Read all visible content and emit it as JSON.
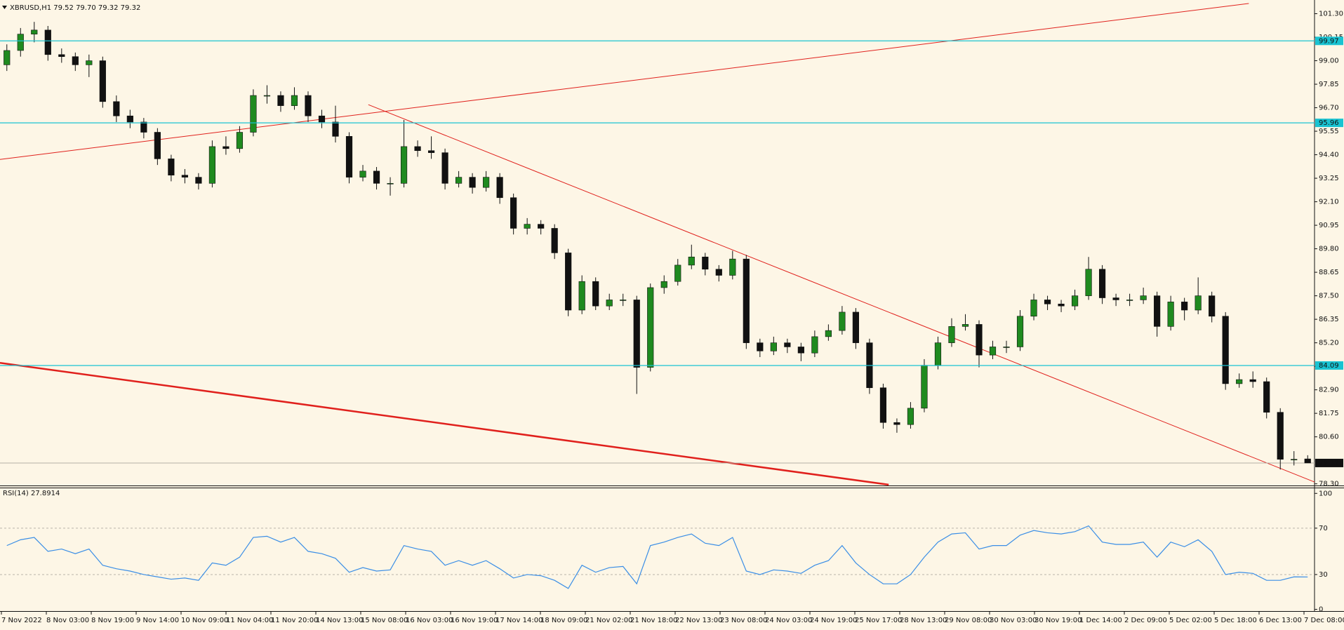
{
  "chart_data": {
    "type": "candlestick",
    "title": "XBRUSD,H1  79.52 79.70 79.32 79.32",
    "up_color": "#1f8a1f",
    "down_color": "#111111",
    "ylim": [
      78.22,
      101.97
    ],
    "yticks": [
      {
        "value": 101.3,
        "label": "101.30"
      },
      {
        "value": 100.15,
        "label": "100.15"
      },
      {
        "value": 99.0,
        "label": "99.00"
      },
      {
        "value": 97.85,
        "label": "97.85"
      },
      {
        "value": 96.7,
        "label": "96.70"
      },
      {
        "value": 95.55,
        "label": "95.55"
      },
      {
        "value": 94.4,
        "label": "94.40"
      },
      {
        "value": 93.25,
        "label": "93.25"
      },
      {
        "value": 92.1,
        "label": "92.10"
      },
      {
        "value": 90.95,
        "label": "90.95"
      },
      {
        "value": 89.8,
        "label": "89.80"
      },
      {
        "value": 88.65,
        "label": "88.65"
      },
      {
        "value": 87.5,
        "label": "87.50"
      },
      {
        "value": 86.35,
        "label": "86.35"
      },
      {
        "value": 85.2,
        "label": "85.20"
      },
      {
        "value": 84.05,
        "label": "84.05"
      },
      {
        "value": 82.9,
        "label": "82.90"
      },
      {
        "value": 81.75,
        "label": "81.75"
      },
      {
        "value": 80.6,
        "label": "80.60"
      },
      {
        "value": 78.3,
        "label": "78.30"
      }
    ],
    "levels": [
      99.97,
      95.96,
      84.09
    ],
    "level_color": "#19c3d2",
    "price_line": 79.32,
    "trendlines": [
      {
        "x": [
          -0.5,
          90.7
        ],
        "y": [
          94.17,
          101.8
        ],
        "width": 1
      },
      {
        "x": [
          26.4,
          95.5
        ],
        "y": [
          96.85,
          78.39
        ],
        "width": 1
      },
      {
        "x": [
          -0.5,
          64.4
        ],
        "y": [
          84.22,
          78.26
        ],
        "width": 2.5
      }
    ],
    "trend_color": "#e0201c",
    "candles": [
      [
        98.8,
        99.8,
        98.5,
        99.5
      ],
      [
        99.5,
        100.6,
        99.2,
        100.3
      ],
      [
        100.3,
        100.9,
        99.9,
        100.5
      ],
      [
        100.5,
        100.7,
        99.0,
        99.3
      ],
      [
        99.3,
        99.6,
        98.9,
        99.2
      ],
      [
        99.2,
        99.4,
        98.5,
        98.8
      ],
      [
        98.8,
        99.3,
        98.2,
        99.0
      ],
      [
        99.0,
        99.2,
        96.7,
        97.0
      ],
      [
        97.0,
        97.3,
        96.0,
        96.3
      ],
      [
        96.3,
        96.6,
        95.7,
        96.0
      ],
      [
        96.0,
        96.2,
        95.2,
        95.5
      ],
      [
        95.5,
        95.7,
        93.9,
        94.2
      ],
      [
        94.2,
        94.4,
        93.1,
        93.4
      ],
      [
        93.4,
        93.7,
        93.0,
        93.3
      ],
      [
        93.3,
        93.5,
        92.7,
        93.0
      ],
      [
        93.0,
        95.1,
        92.8,
        94.8
      ],
      [
        94.8,
        95.3,
        94.4,
        94.7
      ],
      [
        94.7,
        95.8,
        94.5,
        95.5
      ],
      [
        95.5,
        97.6,
        95.3,
        97.3
      ],
      [
        97.3,
        97.8,
        96.9,
        97.3
      ],
      [
        97.3,
        97.5,
        96.5,
        96.8
      ],
      [
        96.8,
        97.7,
        96.6,
        97.3
      ],
      [
        97.3,
        97.5,
        96.0,
        96.3
      ],
      [
        96.3,
        96.6,
        95.7,
        96.0
      ],
      [
        96.0,
        96.8,
        95.0,
        95.3
      ],
      [
        95.3,
        95.5,
        93.0,
        93.3
      ],
      [
        93.3,
        93.9,
        93.1,
        93.6
      ],
      [
        93.6,
        93.8,
        92.7,
        93.0
      ],
      [
        93.0,
        93.3,
        92.4,
        93.0
      ],
      [
        93.0,
        96.1,
        92.8,
        94.8
      ],
      [
        94.8,
        95.1,
        94.3,
        94.6
      ],
      [
        94.6,
        95.3,
        94.2,
        94.5
      ],
      [
        94.5,
        94.7,
        92.7,
        93.0
      ],
      [
        93.0,
        93.6,
        92.8,
        93.3
      ],
      [
        93.3,
        93.5,
        92.5,
        92.8
      ],
      [
        92.8,
        93.6,
        92.6,
        93.3
      ],
      [
        93.3,
        93.5,
        92.0,
        92.3
      ],
      [
        92.3,
        92.5,
        90.5,
        90.8
      ],
      [
        90.8,
        91.3,
        90.5,
        91.0
      ],
      [
        91.0,
        91.2,
        90.5,
        90.8
      ],
      [
        90.8,
        91.0,
        89.3,
        89.6
      ],
      [
        89.6,
        89.8,
        86.5,
        86.8
      ],
      [
        86.8,
        88.5,
        86.6,
        88.2
      ],
      [
        88.2,
        88.4,
        86.8,
        87.0
      ],
      [
        87.0,
        87.6,
        86.8,
        87.3
      ],
      [
        87.3,
        87.6,
        87.0,
        87.3
      ],
      [
        87.3,
        87.5,
        82.7,
        84.0
      ],
      [
        84.0,
        88.1,
        83.8,
        87.9
      ],
      [
        87.9,
        88.5,
        87.6,
        88.2
      ],
      [
        88.2,
        89.3,
        88.0,
        89.0
      ],
      [
        89.0,
        90.0,
        88.8,
        89.4
      ],
      [
        89.4,
        89.6,
        88.5,
        88.8
      ],
      [
        88.8,
        89.0,
        88.2,
        88.5
      ],
      [
        88.5,
        89.7,
        88.3,
        89.3
      ],
      [
        89.3,
        89.5,
        84.9,
        85.2
      ],
      [
        85.2,
        85.4,
        84.5,
        84.8
      ],
      [
        84.8,
        85.5,
        84.6,
        85.2
      ],
      [
        85.2,
        85.4,
        84.7,
        85.0
      ],
      [
        85.0,
        85.2,
        84.3,
        84.7
      ],
      [
        84.7,
        85.8,
        84.5,
        85.5
      ],
      [
        85.5,
        86.1,
        85.3,
        85.8
      ],
      [
        85.8,
        87.0,
        85.6,
        86.7
      ],
      [
        86.7,
        86.9,
        84.9,
        85.2
      ],
      [
        85.2,
        85.4,
        82.7,
        83.0
      ],
      [
        83.0,
        83.2,
        81.0,
        81.3
      ],
      [
        81.3,
        81.5,
        80.8,
        81.2
      ],
      [
        81.2,
        82.3,
        81.0,
        82.0
      ],
      [
        82.0,
        84.4,
        81.8,
        84.1
      ],
      [
        84.1,
        85.5,
        83.9,
        85.2
      ],
      [
        85.2,
        86.4,
        85.0,
        86.0
      ],
      [
        86.0,
        86.6,
        85.8,
        86.1
      ],
      [
        86.1,
        86.3,
        84.0,
        84.6
      ],
      [
        84.6,
        85.3,
        84.4,
        85.0
      ],
      [
        85.0,
        85.3,
        84.7,
        85.0
      ],
      [
        85.0,
        86.8,
        84.8,
        86.5
      ],
      [
        86.5,
        87.6,
        86.3,
        87.3
      ],
      [
        87.3,
        87.5,
        86.8,
        87.1
      ],
      [
        87.1,
        87.3,
        86.7,
        87.0
      ],
      [
        87.0,
        87.8,
        86.8,
        87.5
      ],
      [
        87.5,
        89.4,
        87.3,
        88.8
      ],
      [
        88.8,
        89.0,
        87.1,
        87.4
      ],
      [
        87.4,
        87.6,
        87.0,
        87.3
      ],
      [
        87.3,
        87.6,
        87.0,
        87.3
      ],
      [
        87.3,
        87.9,
        87.1,
        87.5
      ],
      [
        87.5,
        87.7,
        85.5,
        86.0
      ],
      [
        86.0,
        87.5,
        85.8,
        87.2
      ],
      [
        87.2,
        87.4,
        86.3,
        86.8
      ],
      [
        86.8,
        88.4,
        86.6,
        87.5
      ],
      [
        87.5,
        87.7,
        86.2,
        86.5
      ],
      [
        86.5,
        86.7,
        82.9,
        83.2
      ],
      [
        83.2,
        83.7,
        83.0,
        83.4
      ],
      [
        83.4,
        83.8,
        83.0,
        83.3
      ],
      [
        83.3,
        83.5,
        81.5,
        81.8
      ],
      [
        81.8,
        82.0,
        79.0,
        79.5
      ],
      [
        79.5,
        79.9,
        79.2,
        79.5
      ],
      [
        79.52,
        79.7,
        79.32,
        79.32
      ]
    ],
    "x_labels": [
      "7 Nov 2022",
      "8 Nov 03:00",
      "8 Nov 19:00",
      "9 Nov 14:00",
      "10 Nov 09:00",
      "11 Nov 04:00",
      "11 Nov 20:00",
      "14 Nov 13:00",
      "15 Nov 08:00",
      "16 Nov 03:00",
      "16 Nov 19:00",
      "17 Nov 14:00",
      "18 Nov 09:00",
      "21 Nov 02:00",
      "21 Nov 18:00",
      "22 Nov 13:00",
      "23 Nov 08:00",
      "24 Nov 03:00",
      "24 Nov 19:00",
      "25 Nov 17:00",
      "28 Nov 13:00",
      "29 Nov 08:00",
      "30 Nov 03:00",
      "30 Nov 19:00",
      "1 Dec 14:00",
      "2 Dec 09:00",
      "5 Dec 02:00",
      "5 Dec 18:00",
      "6 Dec 13:00",
      "7 Dec 08:00"
    ],
    "rsi": {
      "type": "line",
      "label": "RSI(14) 27.8914",
      "color": "#3a8ee6",
      "ylim": [
        -1.5,
        104.4
      ],
      "yticks": [
        100,
        70,
        30,
        0
      ],
      "values": [
        55,
        60,
        62,
        50,
        52,
        48,
        52,
        38,
        35,
        33,
        30,
        28,
        26,
        27,
        25,
        40,
        38,
        45,
        62,
        63,
        58,
        62,
        50,
        48,
        44,
        32,
        36,
        33,
        34,
        55,
        52,
        50,
        38,
        42,
        38,
        42,
        35,
        27,
        30,
        29,
        25,
        18,
        38,
        32,
        36,
        37,
        22,
        55,
        58,
        62,
        65,
        57,
        55,
        62,
        33,
        30,
        34,
        33,
        31,
        38,
        42,
        55,
        40,
        30,
        22,
        22,
        30,
        45,
        58,
        65,
        66,
        52,
        55,
        55,
        64,
        68,
        66,
        65,
        67,
        72,
        58,
        56,
        56,
        58,
        45,
        58,
        54,
        60,
        50,
        30,
        32,
        31,
        25,
        25,
        28,
        27.8914
      ]
    }
  }
}
